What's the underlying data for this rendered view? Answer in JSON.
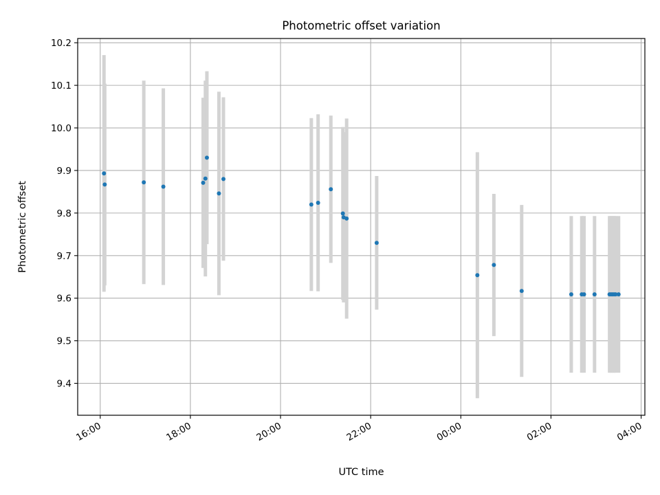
{
  "chart_data": {
    "type": "scatter",
    "title": "Photometric offset variation",
    "xlabel": "UTC time",
    "ylabel": "Photometric offset",
    "x_axis_kind": "time",
    "xlim": [
      "15:30",
      "04:05 (+1 day)"
    ],
    "ylim": [
      9.325,
      10.21
    ],
    "x_ticks": [
      "16:00",
      "18:00",
      "20:00",
      "22:00",
      "00:00",
      "02:00",
      "04:00"
    ],
    "y_ticks": [
      9.4,
      9.5,
      9.6,
      9.7,
      9.8,
      9.9,
      10.0,
      10.1,
      10.2
    ],
    "y_tick_labels": [
      "9.4",
      "9.5",
      "9.6",
      "9.7",
      "9.8",
      "9.9",
      "10.0",
      "10.1",
      "10.2"
    ],
    "grid": true,
    "legend": "none",
    "colors": {
      "point": "#1f77b4",
      "errorbar": "#d3d3d3",
      "grid": "#b0b0b0"
    },
    "points": [
      {
        "x": "16:05",
        "y": 9.893,
        "err": 0.278
      },
      {
        "x": "16:06",
        "y": 9.867,
        "err": 0.237
      },
      {
        "x": "16:58",
        "y": 9.872,
        "err": 0.239
      },
      {
        "x": "17:24",
        "y": 9.862,
        "err": 0.231
      },
      {
        "x": "18:17",
        "y": 9.871,
        "err": 0.2
      },
      {
        "x": "18:20",
        "y": 9.881,
        "err": 0.23
      },
      {
        "x": "18:22",
        "y": 9.93,
        "err": 0.203
      },
      {
        "x": "18:38",
        "y": 9.846,
        "err": 0.239
      },
      {
        "x": "18:44",
        "y": 9.88,
        "err": 0.192
      },
      {
        "x": "20:41",
        "y": 9.82,
        "err": 0.203
      },
      {
        "x": "20:50",
        "y": 9.824,
        "err": 0.208
      },
      {
        "x": "21:07",
        "y": 9.856,
        "err": 0.173
      },
      {
        "x": "21:23",
        "y": 9.799,
        "err": 0.203
      },
      {
        "x": "21:24",
        "y": 9.79,
        "err": 0.2
      },
      {
        "x": "21:28",
        "y": 9.787,
        "err": 0.235
      },
      {
        "x": "22:08",
        "y": 9.73,
        "err": 0.157
      },
      {
        "x": "00:22",
        "y": 9.654,
        "err": 0.289
      },
      {
        "x": "00:44",
        "y": 9.678,
        "err": 0.167
      },
      {
        "x": "01:21",
        "y": 9.617,
        "err": 0.202
      },
      {
        "x": "02:27",
        "y": 9.609,
        "err": 0.184
      },
      {
        "x": "02:41",
        "y": 9.609,
        "err": 0.184
      },
      {
        "x": "02:44",
        "y": 9.609,
        "err": 0.184
      },
      {
        "x": "02:58",
        "y": 9.609,
        "err": 0.184
      },
      {
        "x": "03:18",
        "y": 9.609,
        "err": 0.184
      },
      {
        "x": "03:20",
        "y": 9.609,
        "err": 0.184
      },
      {
        "x": "03:22",
        "y": 9.609,
        "err": 0.184
      },
      {
        "x": "03:24",
        "y": 9.609,
        "err": 0.184
      },
      {
        "x": "03:26",
        "y": 9.609,
        "err": 0.184
      },
      {
        "x": "03:30",
        "y": 9.609,
        "err": 0.184
      }
    ]
  }
}
